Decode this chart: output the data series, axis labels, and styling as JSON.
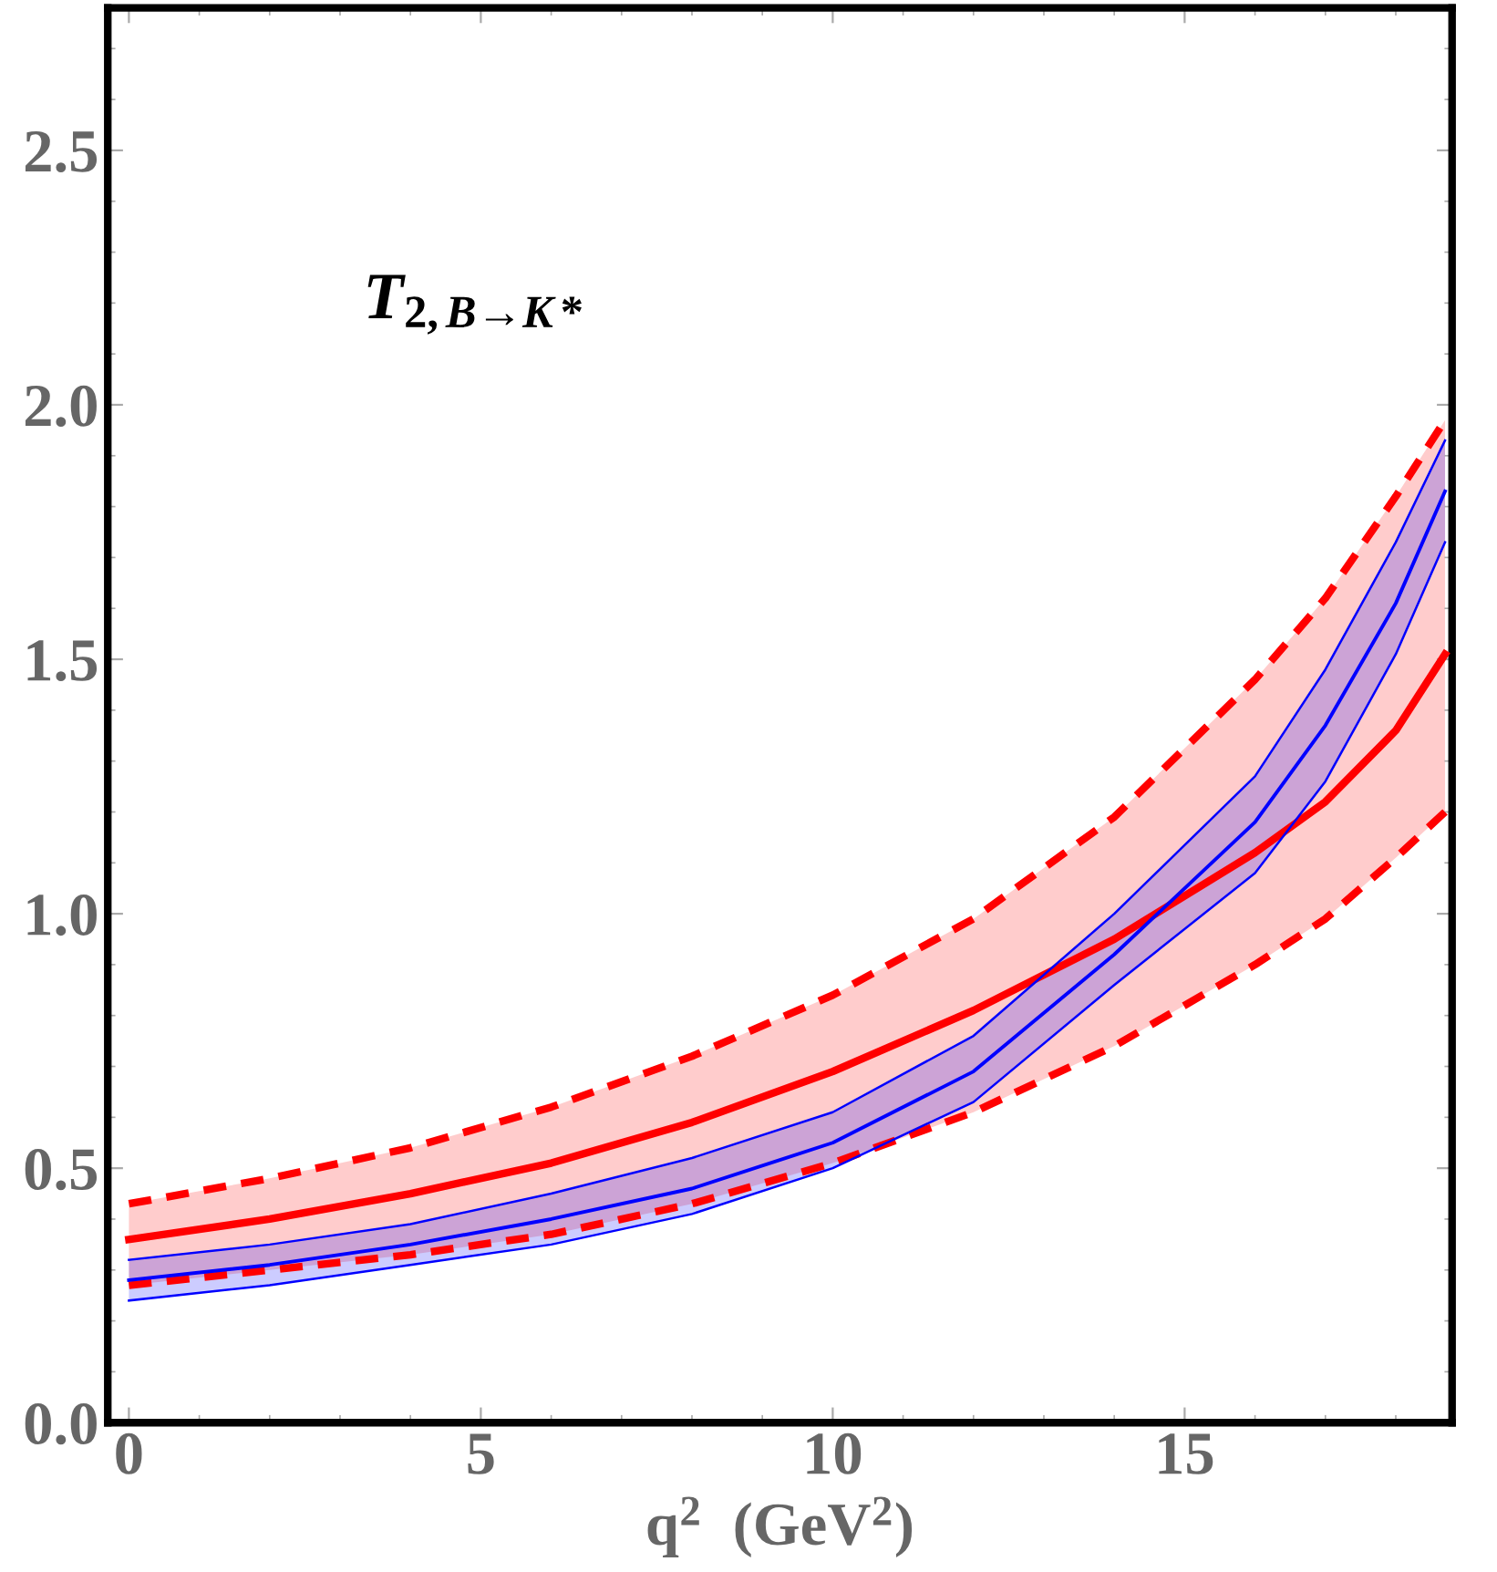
{
  "chart_data": {
    "type": "line",
    "xlabel": "q$^{2}$  (GeV$^{2}$)",
    "annotations": [
      "T$_{2,B→K*}$"
    ],
    "xlim": [
      -0.3,
      18.8
    ],
    "ylim": [
      0,
      2.78
    ],
    "xticks": [
      0,
      5,
      10,
      15
    ],
    "yticks": [
      {
        "value": 0,
        "label": "0.0"
      },
      0.5,
      {
        "value": 1,
        "label": "1.0"
      },
      1.5,
      {
        "value": 2,
        "label": "2.0"
      },
      2.5
    ],
    "grid": false,
    "legend": false,
    "marker": "none",
    "series": [
      {
        "color": "#ff0000",
        "line_style": "solid",
        "x": [
          0,
          2,
          4,
          6,
          8,
          10,
          12,
          14,
          16,
          17,
          18,
          18.7
        ],
        "values": [
          0.36,
          0.4,
          0.45,
          0.51,
          0.59,
          0.69,
          0.81,
          0.95,
          1.12,
          1.22,
          1.36,
          1.51
        ],
        "lower": [
          0.27,
          0.3,
          0.33,
          0.37,
          0.43,
          0.51,
          0.61,
          0.74,
          0.9,
          0.99,
          1.11,
          1.2
        ],
        "upper": [
          0.43,
          0.48,
          0.54,
          0.62,
          0.72,
          0.84,
          0.99,
          1.19,
          1.46,
          1.62,
          1.82,
          1.97
        ]
      },
      {
        "color": "#ff0000",
        "line_style": "dashed",
        "x": [
          0,
          2,
          4,
          6,
          8,
          10,
          12,
          14,
          16,
          17,
          18,
          18.7
        ],
        "values": [
          0.43,
          0.48,
          0.54,
          0.62,
          0.72,
          0.84,
          0.99,
          1.19,
          1.46,
          1.62,
          1.82,
          1.97
        ]
      },
      {
        "color": "#ff0000",
        "line_style": "dashed",
        "x": [
          0,
          2,
          4,
          6,
          8,
          10,
          12,
          14,
          16,
          17,
          18,
          18.7
        ],
        "values": [
          0.27,
          0.3,
          0.33,
          0.37,
          0.43,
          0.51,
          0.61,
          0.74,
          0.9,
          0.99,
          1.11,
          1.2
        ]
      },
      {
        "color": "#0000ff",
        "line_style": "solid",
        "x": [
          0,
          2,
          4,
          6,
          8,
          10,
          12,
          14,
          16,
          17,
          18,
          18.7
        ],
        "values": [
          0.28,
          0.31,
          0.35,
          0.4,
          0.46,
          0.55,
          0.69,
          0.92,
          1.18,
          1.37,
          1.61,
          1.83
        ],
        "lower": [
          0.24,
          0.27,
          0.31,
          0.35,
          0.41,
          0.5,
          0.63,
          0.86,
          1.08,
          1.26,
          1.51,
          1.73
        ],
        "upper": [
          0.32,
          0.35,
          0.39,
          0.45,
          0.52,
          0.61,
          0.76,
          1.0,
          1.27,
          1.48,
          1.73,
          1.93
        ]
      },
      {
        "color": "#0000ff",
        "line_style": "solid",
        "x": [
          0,
          2,
          4,
          6,
          8,
          10,
          12,
          14,
          16,
          17,
          18,
          18.7
        ],
        "values": [
          0.24,
          0.27,
          0.31,
          0.35,
          0.41,
          0.5,
          0.63,
          0.86,
          1.08,
          1.26,
          1.51,
          1.73
        ]
      },
      {
        "color": "#0000ff",
        "line_style": "solid",
        "x": [
          0,
          2,
          4,
          6,
          8,
          10,
          12,
          14,
          16,
          17,
          18,
          18.7
        ],
        "values": [
          0.32,
          0.35,
          0.39,
          0.45,
          0.52,
          0.61,
          0.76,
          1.0,
          1.27,
          1.48,
          1.73,
          1.93
        ]
      }
    ]
  }
}
